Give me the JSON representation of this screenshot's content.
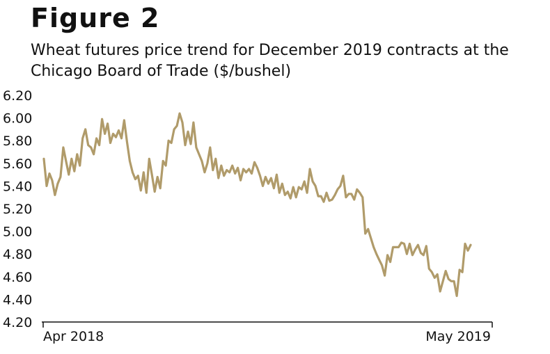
{
  "figure_label": "Figure 2",
  "chart_data": {
    "type": "line",
    "title": "Wheat futures price trend for December 2019 contracts at the Chicago Board of Trade ($/bushel)",
    "xlabel": "",
    "ylabel": "",
    "ylim": [
      4.2,
      6.2
    ],
    "yticks": [
      "6.20",
      "6.00",
      "5.80",
      "5.60",
      "5.40",
      "5.20",
      "5.00",
      "4.80",
      "4.60",
      "4.40",
      "4.20"
    ],
    "xtick_labels": [
      "Apr 2018",
      "May 2019"
    ],
    "line_color": "#b09b6a",
    "grid": false,
    "series": [
      {
        "values": [
          5.64,
          5.4,
          5.51,
          5.45,
          5.32,
          5.42,
          5.48,
          5.74,
          5.62,
          5.5,
          5.64,
          5.53,
          5.68,
          5.58,
          5.82,
          5.9,
          5.76,
          5.74,
          5.68,
          5.82,
          5.76,
          5.99,
          5.86,
          5.95,
          5.78,
          5.86,
          5.83,
          5.89,
          5.82,
          5.98,
          5.79,
          5.62,
          5.52,
          5.46,
          5.49,
          5.36,
          5.52,
          5.34,
          5.64,
          5.5,
          5.35,
          5.48,
          5.38,
          5.62,
          5.58,
          5.8,
          5.78,
          5.9,
          5.93,
          6.04,
          5.96,
          5.76,
          5.88,
          5.77,
          5.96,
          5.74,
          5.68,
          5.62,
          5.52,
          5.6,
          5.74,
          5.54,
          5.64,
          5.47,
          5.58,
          5.49,
          5.54,
          5.52,
          5.58,
          5.51,
          5.56,
          5.45,
          5.55,
          5.52,
          5.55,
          5.51,
          5.61,
          5.56,
          5.49,
          5.4,
          5.48,
          5.42,
          5.47,
          5.38,
          5.5,
          5.34,
          5.42,
          5.32,
          5.35,
          5.29,
          5.39,
          5.3,
          5.39,
          5.37,
          5.44,
          5.34,
          5.55,
          5.44,
          5.4,
          5.31,
          5.31,
          5.26,
          5.34,
          5.27,
          5.28,
          5.32,
          5.37,
          5.4,
          5.49,
          5.3,
          5.33,
          5.33,
          5.28,
          5.37,
          5.34,
          5.3,
          4.98,
          5.02,
          4.94,
          4.86,
          4.8,
          4.75,
          4.7,
          4.61,
          4.79,
          4.73,
          4.86,
          4.86,
          4.86,
          4.9,
          4.89,
          4.8,
          4.89,
          4.79,
          4.84,
          4.88,
          4.81,
          4.79,
          4.87,
          4.67,
          4.64,
          4.59,
          4.62,
          4.47,
          4.56,
          4.65,
          4.58,
          4.56,
          4.56,
          4.43,
          4.66,
          4.64,
          4.89,
          4.83,
          4.88
        ]
      }
    ]
  }
}
